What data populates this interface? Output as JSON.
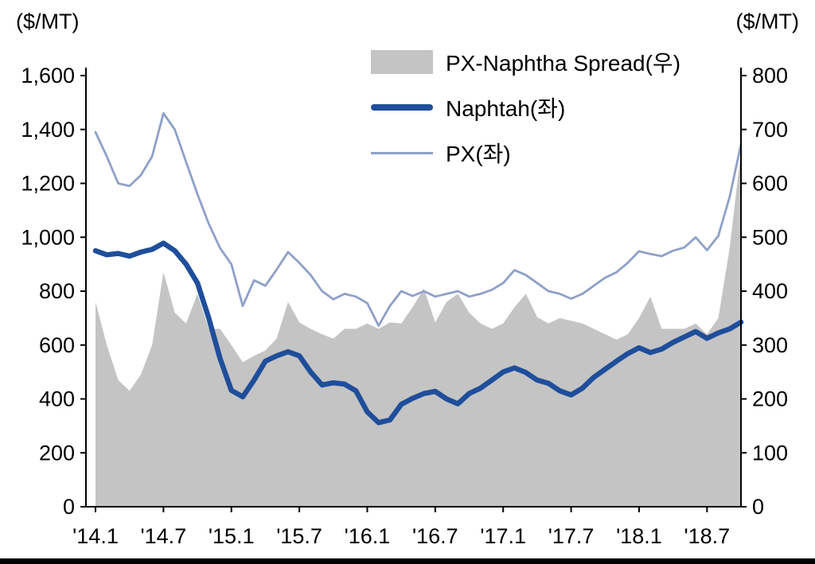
{
  "chart_data": {
    "type": "combo-line-area",
    "title": "",
    "left_axis": {
      "unit": "($/MT)",
      "min": 0,
      "max": 1600,
      "step": 200
    },
    "right_axis": {
      "unit": "($/MT)",
      "min": 0,
      "max": 800,
      "step": 100
    },
    "x_tick_labels": [
      "'14.1",
      "'14.7",
      "'15.1",
      "'15.7",
      "'16.1",
      "'16.7",
      "'17.1",
      "'17.7",
      "'18.1",
      "'18.7"
    ],
    "x_tick_month_index": [
      0,
      6,
      12,
      18,
      24,
      30,
      36,
      42,
      48,
      54
    ],
    "legend_position": "top-center-inside",
    "grid": false,
    "series": [
      {
        "name": "PX-Naphtha Spread(우)",
        "type": "area",
        "axis": "right",
        "color": "#c4c4c4",
        "values": [
          380,
          300,
          235,
          215,
          245,
          300,
          435,
          360,
          340,
          395,
          330,
          330,
          300,
          268,
          280,
          290,
          312,
          380,
          342,
          330,
          320,
          312,
          330,
          330,
          340,
          330,
          342,
          340,
          370,
          405,
          342,
          380,
          395,
          360,
          340,
          330,
          340,
          370,
          395,
          352,
          340,
          350,
          345,
          340,
          330,
          320,
          310,
          320,
          350,
          390,
          330,
          330,
          330,
          340,
          320,
          350,
          480,
          660
        ]
      },
      {
        "name": "Naphtah(좌)",
        "type": "line",
        "axis": "left",
        "color": "#1f4e9b",
        "stroke_width": 6.5,
        "values": [
          950,
          935,
          940,
          930,
          945,
          955,
          978,
          950,
          900,
          830,
          700,
          550,
          432,
          408,
          470,
          540,
          560,
          575,
          560,
          500,
          452,
          460,
          455,
          430,
          352,
          312,
          322,
          380,
          402,
          420,
          428,
          400,
          382,
          420,
          440,
          470,
          500,
          515,
          498,
          470,
          458,
          430,
          415,
          440,
          480,
          510,
          540,
          568,
          590,
          572,
          585,
          610,
          630,
          650,
          625,
          645,
          660,
          685
        ]
      },
      {
        "name": "PX(좌)",
        "type": "line",
        "axis": "left",
        "color": "#8fa0c8",
        "stroke_width": 2.8,
        "values": [
          1390,
          1300,
          1200,
          1190,
          1230,
          1300,
          1460,
          1400,
          1280,
          1160,
          1050,
          960,
          900,
          745,
          840,
          820,
          880,
          945,
          905,
          860,
          800,
          770,
          790,
          780,
          755,
          672,
          745,
          800,
          782,
          800,
          780,
          790,
          800,
          780,
          790,
          805,
          830,
          878,
          860,
          830,
          800,
          790,
          772,
          790,
          820,
          850,
          870,
          905,
          948,
          938,
          930,
          950,
          962,
          1000,
          952,
          1005,
          1150,
          1345
        ]
      }
    ]
  }
}
